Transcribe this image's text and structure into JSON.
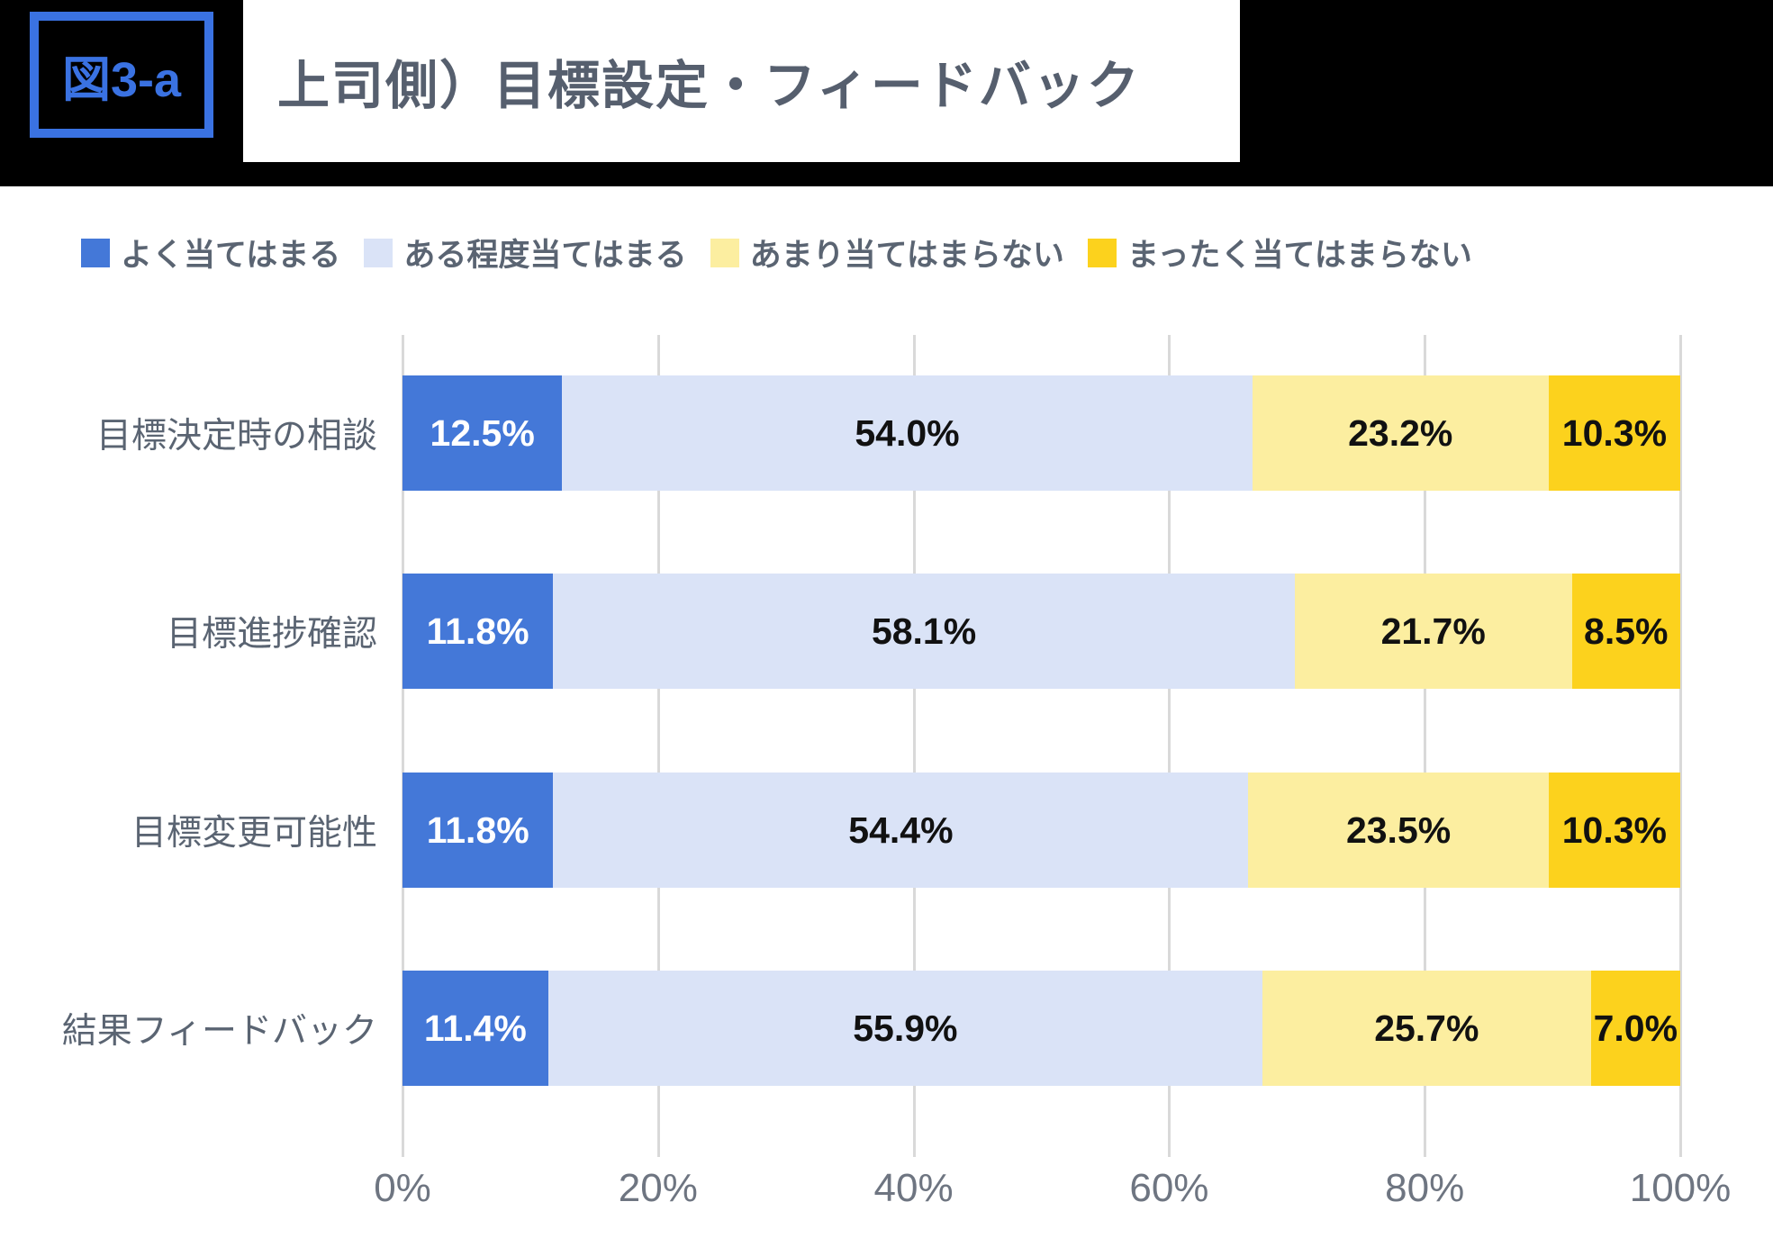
{
  "header": {
    "figure_label": "図3-a",
    "title": "上司側）目標設定・フィードバック"
  },
  "colors": {
    "accent_blue": "#3a72e2",
    "header_background": "#000000",
    "gridline": "#d9d9d9",
    "title_text": "#565f6e",
    "label_text": "#5a6472",
    "axis_text": "#6e7581"
  },
  "chart_data": {
    "type": "bar",
    "orientation": "horizontal-stacked",
    "title": "上司側）目標設定・フィードバック",
    "categories": [
      "目標決定時の相談",
      "目標進捗確認",
      "目標変更可能性",
      "結果フィードバック"
    ],
    "series": [
      {
        "name": "よく当てはまる",
        "color": "#4478d8",
        "text_color": "#ffffff",
        "values": [
          12.5,
          11.8,
          11.8,
          11.4
        ]
      },
      {
        "name": "ある程度当てはまる",
        "color": "#dae3f7",
        "text_color": "#111111",
        "values": [
          54.0,
          58.1,
          54.4,
          55.9
        ]
      },
      {
        "name": "あまり当てはまらない",
        "color": "#fceea0",
        "text_color": "#111111",
        "values": [
          23.2,
          21.7,
          23.5,
          25.7
        ]
      },
      {
        "name": "まったく当てはまらない",
        "color": "#fcd21d",
        "text_color": "#111111",
        "values": [
          10.3,
          8.5,
          10.3,
          7.0
        ]
      }
    ],
    "value_suffix": "%",
    "value_decimals": 1,
    "x_ticks": [
      "0%",
      "20%",
      "40%",
      "60%",
      "80%",
      "100%"
    ],
    "xlim": [
      0,
      100
    ],
    "grid": true,
    "legend_position": "top"
  }
}
